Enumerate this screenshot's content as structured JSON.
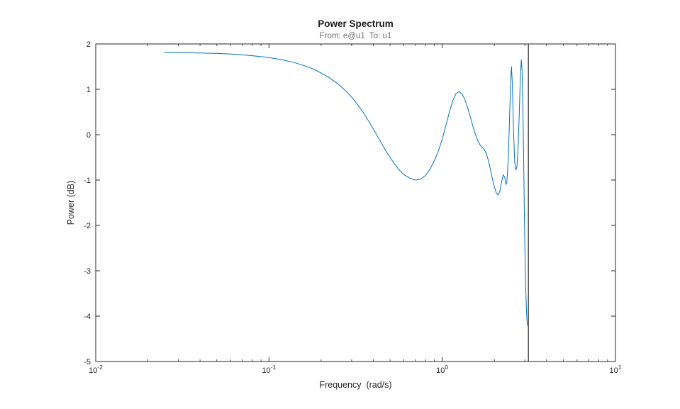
{
  "figure": {
    "background": "#ffffff"
  },
  "chart_data": {
    "type": "line",
    "title": "Power Spectrum",
    "subtitle": "From: e@u1  To: u1",
    "xlabel": "Frequency  (rad/s)",
    "ylabel": "Power (dB)",
    "x_scale": "log",
    "xlim": [
      0.01,
      10
    ],
    "ylim": [
      -5,
      2
    ],
    "grid": false,
    "axis_color": "#262626",
    "x_ticks": [
      {
        "value": 0.01,
        "base": "10",
        "exp": "-2"
      },
      {
        "value": 0.1,
        "base": "10",
        "exp": "-1"
      },
      {
        "value": 1,
        "base": "10",
        "exp": "0"
      },
      {
        "value": 10,
        "base": "10",
        "exp": "1"
      }
    ],
    "y_ticks": [
      2,
      1,
      0,
      -1,
      -2,
      -3,
      -4,
      -5
    ],
    "series": [
      {
        "name": "power-spectrum-e@u1-to-u1",
        "color": "#0072BD",
        "points": [
          [
            0.025,
            1.81
          ],
          [
            0.03,
            1.81
          ],
          [
            0.04,
            1.8
          ],
          [
            0.05,
            1.79
          ],
          [
            0.06,
            1.78
          ],
          [
            0.07,
            1.76
          ],
          [
            0.08,
            1.74
          ],
          [
            0.09,
            1.72
          ],
          [
            0.1,
            1.7
          ],
          [
            0.12,
            1.65
          ],
          [
            0.14,
            1.59
          ],
          [
            0.16,
            1.52
          ],
          [
            0.18,
            1.45
          ],
          [
            0.2,
            1.36
          ],
          [
            0.22,
            1.27
          ],
          [
            0.25,
            1.12
          ],
          [
            0.28,
            0.95
          ],
          [
            0.3,
            0.83
          ],
          [
            0.33,
            0.63
          ],
          [
            0.36,
            0.42
          ],
          [
            0.4,
            0.13
          ],
          [
            0.44,
            -0.15
          ],
          [
            0.48,
            -0.4
          ],
          [
            0.52,
            -0.6
          ],
          [
            0.56,
            -0.76
          ],
          [
            0.6,
            -0.88
          ],
          [
            0.65,
            -0.96
          ],
          [
            0.7,
            -1.0
          ],
          [
            0.75,
            -0.98
          ],
          [
            0.8,
            -0.9
          ],
          [
            0.85,
            -0.76
          ],
          [
            0.9,
            -0.58
          ],
          [
            0.95,
            -0.36
          ],
          [
            1.0,
            -0.1
          ],
          [
            1.05,
            0.2
          ],
          [
            1.1,
            0.5
          ],
          [
            1.15,
            0.75
          ],
          [
            1.2,
            0.9
          ],
          [
            1.25,
            0.95
          ],
          [
            1.3,
            0.9
          ],
          [
            1.35,
            0.78
          ],
          [
            1.4,
            0.6
          ],
          [
            1.45,
            0.4
          ],
          [
            1.5,
            0.2
          ],
          [
            1.55,
            0.02
          ],
          [
            1.6,
            -0.12
          ],
          [
            1.65,
            -0.22
          ],
          [
            1.7,
            -0.28
          ],
          [
            1.75,
            -0.33
          ],
          [
            1.8,
            -0.42
          ],
          [
            1.85,
            -0.58
          ],
          [
            1.9,
            -0.78
          ],
          [
            1.95,
            -0.98
          ],
          [
            2.0,
            -1.15
          ],
          [
            2.05,
            -1.28
          ],
          [
            2.1,
            -1.33
          ],
          [
            2.15,
            -1.25
          ],
          [
            2.2,
            -1.05
          ],
          [
            2.25,
            -0.88
          ],
          [
            2.3,
            -0.95
          ],
          [
            2.33,
            -1.1
          ],
          [
            2.36,
            -1.05
          ],
          [
            2.4,
            -0.6
          ],
          [
            2.44,
            0.2
          ],
          [
            2.48,
            1.1
          ],
          [
            2.51,
            1.5
          ],
          [
            2.54,
            1.1
          ],
          [
            2.58,
            0.1
          ],
          [
            2.62,
            -0.6
          ],
          [
            2.66,
            -0.78
          ],
          [
            2.7,
            -0.7
          ],
          [
            2.74,
            -0.3
          ],
          [
            2.78,
            0.4
          ],
          [
            2.82,
            1.2
          ],
          [
            2.86,
            1.65
          ],
          [
            2.89,
            1.4
          ],
          [
            2.92,
            0.6
          ],
          [
            2.95,
            -0.5
          ],
          [
            2.98,
            -1.8
          ],
          [
            3.01,
            -2.8
          ],
          [
            3.04,
            -3.5
          ],
          [
            3.07,
            -3.95
          ],
          [
            3.1,
            -4.2
          ]
        ]
      }
    ],
    "vline": {
      "x": 3.1416,
      "color": "#000000"
    }
  }
}
